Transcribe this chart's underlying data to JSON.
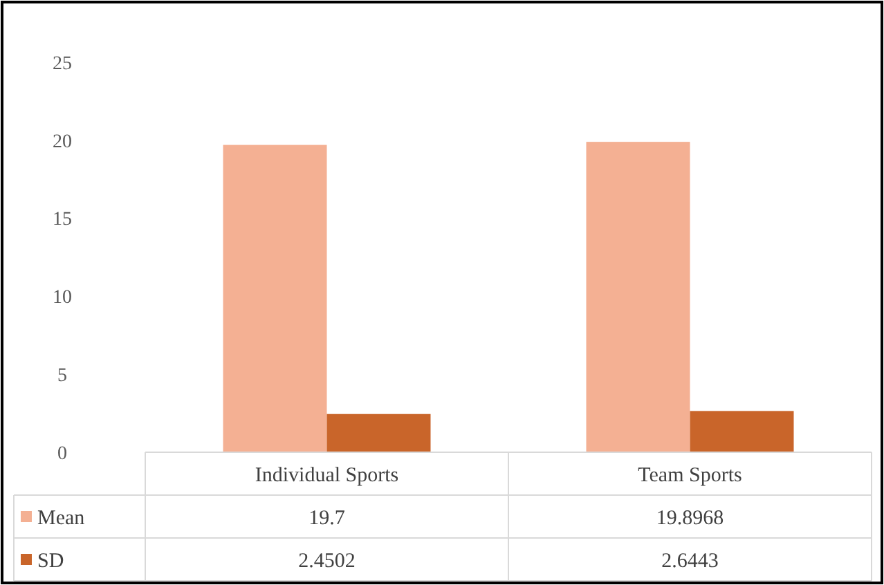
{
  "chart_data": {
    "type": "bar",
    "categories": [
      "Individual Sports",
      "Team Sports"
    ],
    "series": [
      {
        "name": "Mean",
        "color": "#f4b093",
        "values": [
          19.7,
          19.8968
        ]
      },
      {
        "name": "SD",
        "color": "#c9652a",
        "values": [
          2.4502,
          2.6443
        ]
      }
    ],
    "ylim": [
      0,
      25
    ],
    "yticks": [
      0,
      5,
      10,
      15,
      20,
      25
    ],
    "data_labels": true,
    "legend": "bottom"
  }
}
